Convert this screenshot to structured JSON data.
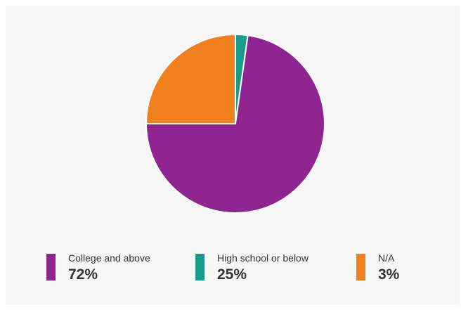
{
  "chart_data": {
    "type": "pie",
    "title": "",
    "slices": [
      {
        "label": "College and above",
        "value": 72,
        "display": "72%",
        "color": "#8e2590"
      },
      {
        "label": "High school or below",
        "value": 25,
        "display": "25%",
        "color": "#1a9b8c"
      },
      {
        "label": "N/A",
        "value": 3,
        "display": "3%",
        "color": "#f07f1d"
      }
    ],
    "legend_position": "bottom"
  }
}
